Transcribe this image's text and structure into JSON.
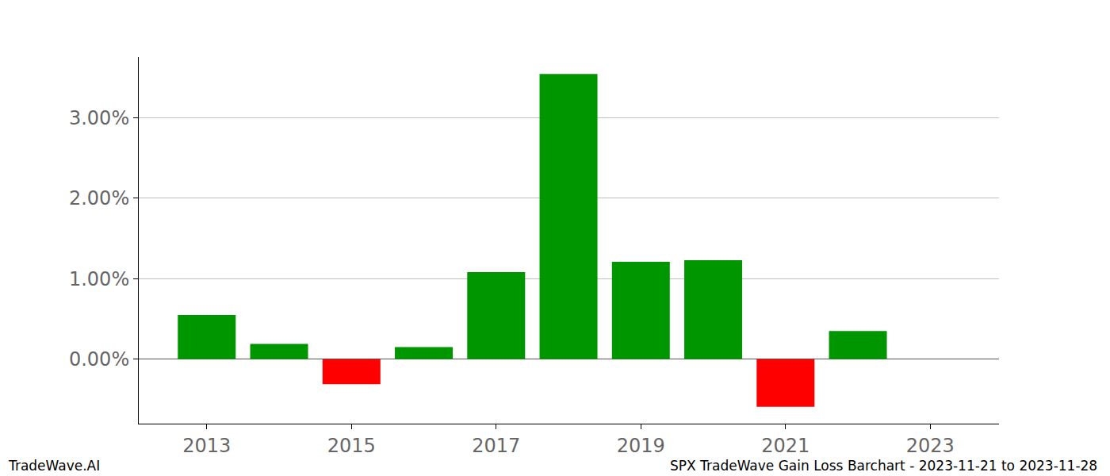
{
  "chart_data": {
    "type": "bar",
    "footer_left": "TradeWave.AI",
    "footer_right": "SPX TradeWave Gain Loss Barchart - 2023-11-21 to 2023-11-28",
    "x": [
      2013,
      2014,
      2015,
      2016,
      2017,
      2018,
      2019,
      2020,
      2021,
      2022
    ],
    "values": [
      0.55,
      0.19,
      -0.31,
      0.15,
      1.08,
      3.54,
      1.21,
      1.23,
      -0.59,
      0.35
    ],
    "colors": [
      "#009600",
      "#009600",
      "#ff0000",
      "#009600",
      "#009600",
      "#009600",
      "#009600",
      "#009600",
      "#ff0000",
      "#009600"
    ],
    "xlim": [
      2012.06,
      2023.95
    ],
    "xticks": [
      2013,
      2015,
      2017,
      2019,
      2021,
      2023
    ],
    "ylim": [
      -0.8,
      3.75
    ],
    "yticks": [
      {
        "value": 0,
        "label": "0.00%"
      },
      {
        "value": 1,
        "label": "1.00%"
      },
      {
        "value": 2,
        "label": "2.00%"
      },
      {
        "value": 3,
        "label": "3.00%"
      }
    ],
    "grid": true
  }
}
